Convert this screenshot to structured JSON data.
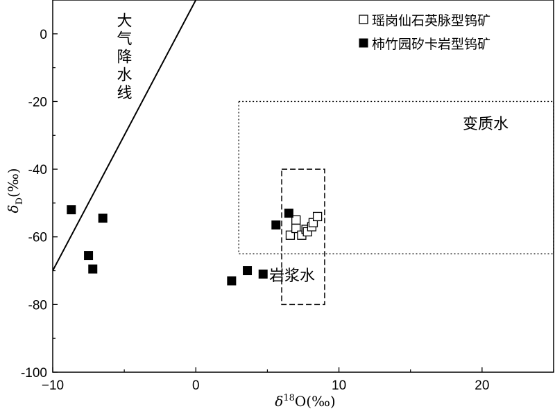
{
  "chart_data": {
    "type": "scatter",
    "title": "",
    "xlabel": "δ18O(‰)",
    "ylabel": "δD(‰)",
    "xlim": [
      -10,
      25
    ],
    "ylim": [
      -100,
      10
    ],
    "x_ticks": [
      -10,
      0,
      10,
      20
    ],
    "y_ticks": [
      0,
      -20,
      -40,
      -60,
      -80,
      -100
    ],
    "x_tick_labels": [
      "−10",
      "0",
      "10",
      "20"
    ],
    "y_tick_labels": [
      "0",
      "-20",
      "-40",
      "-60",
      "-80",
      "-100"
    ],
    "grid": false,
    "legend_position": "top-right",
    "series": [
      {
        "name": "瑶岗仙石英脉型钨矿",
        "marker": "open-square",
        "color": "#000000",
        "points": [
          {
            "x": 6.6,
            "y": -59.5
          },
          {
            "x": 7.0,
            "y": -57.5
          },
          {
            "x": 7.0,
            "y": -55.0
          },
          {
            "x": 7.4,
            "y": -59.5
          },
          {
            "x": 7.7,
            "y": -57.8
          },
          {
            "x": 7.8,
            "y": -58.5
          },
          {
            "x": 8.1,
            "y": -57.0
          },
          {
            "x": 8.2,
            "y": -55.8
          },
          {
            "x": 8.5,
            "y": -54.0
          }
        ]
      },
      {
        "name": "柿竹园矽卡岩型钨矿",
        "marker": "filled-square",
        "color": "#000000",
        "points": [
          {
            "x": -8.7,
            "y": -52.0
          },
          {
            "x": -6.5,
            "y": -54.5
          },
          {
            "x": -7.5,
            "y": -65.5
          },
          {
            "x": -7.2,
            "y": -69.5
          },
          {
            "x": 2.5,
            "y": -73.0
          },
          {
            "x": 3.6,
            "y": -70.0
          },
          {
            "x": 4.7,
            "y": -71.0
          },
          {
            "x": 5.6,
            "y": -56.5
          },
          {
            "x": 6.5,
            "y": -53.0
          }
        ]
      }
    ],
    "annotations": {
      "meteoric_line_label": "大气降水线",
      "metamorphic_label": "变质水",
      "magmatic_label": "岩浆水"
    },
    "meteoric_water_line": {
      "slope": 8,
      "intercept": 10
    },
    "metamorphic_box": {
      "x": [
        3,
        25
      ],
      "y": [
        -65,
        -20
      ],
      "style": "dotted"
    },
    "magmatic_box": {
      "x": [
        6,
        9
      ],
      "y": [
        -80,
        -40
      ],
      "style": "dashed"
    }
  }
}
